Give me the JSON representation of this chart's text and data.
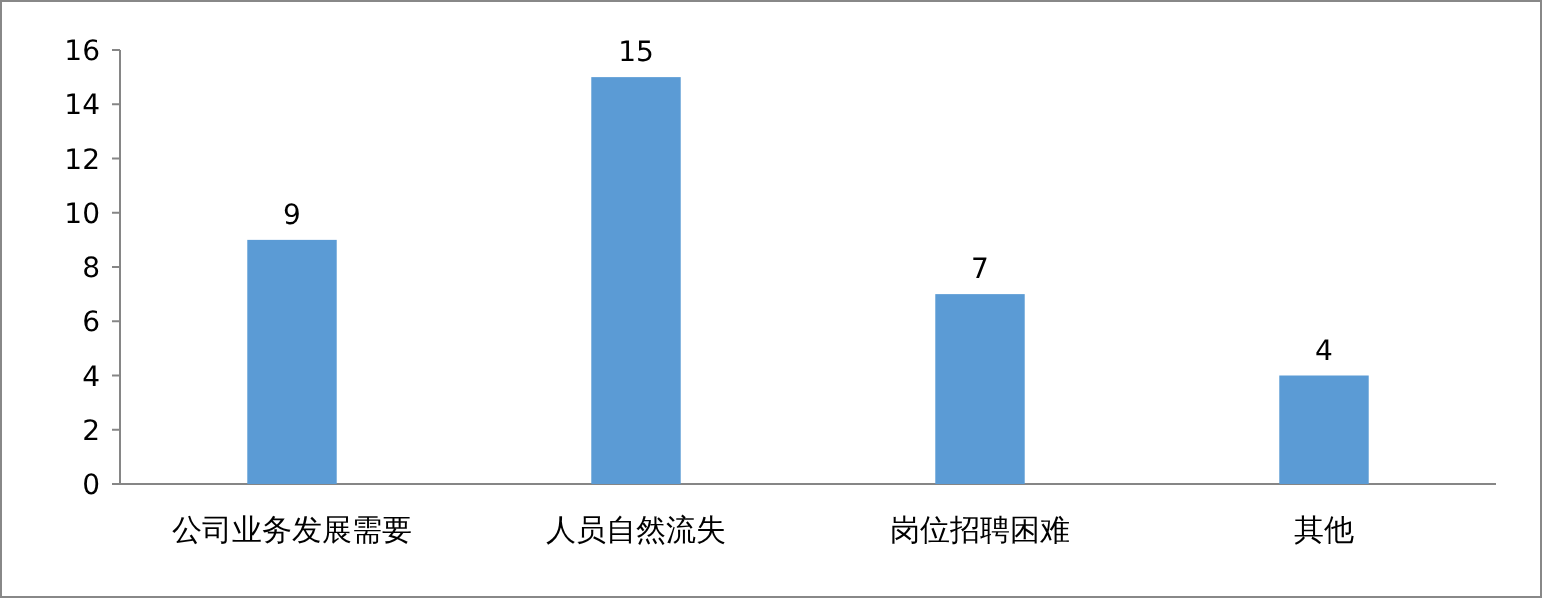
{
  "chart_data": {
    "type": "bar",
    "categories": [
      "公司业务发展需要",
      "人员自然流失",
      "岗位招聘困难",
      "其他"
    ],
    "values": [
      9,
      15,
      7,
      4
    ],
    "color": "#5b9bd5",
    "ylim": [
      0,
      16
    ],
    "yticks": [
      0,
      2,
      4,
      6,
      8,
      10,
      12,
      14,
      16
    ],
    "data_labels": true
  }
}
